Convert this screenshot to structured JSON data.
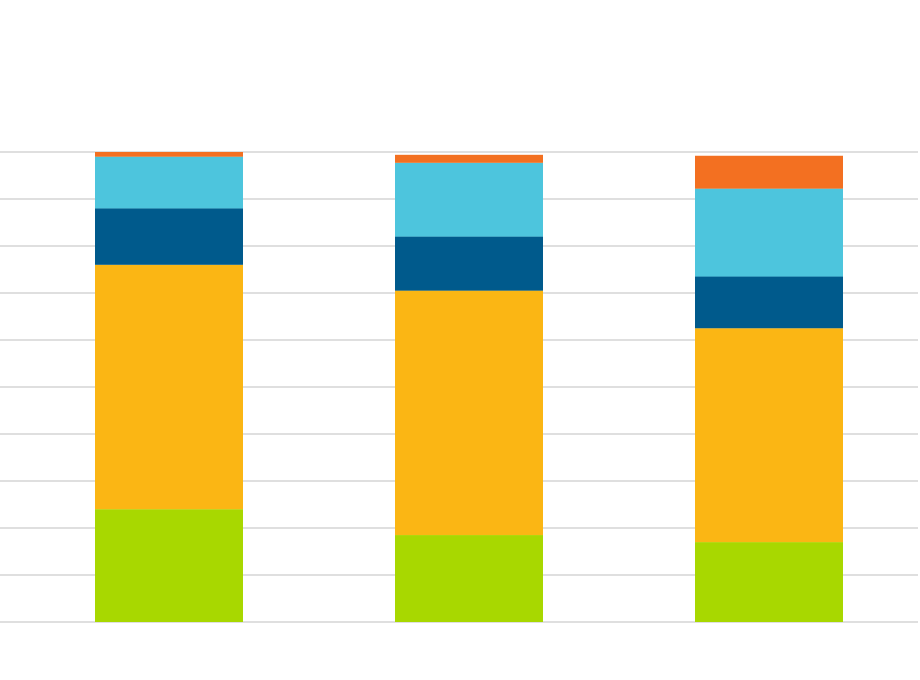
{
  "chart_data": {
    "type": "stacked_bar",
    "categories": [
      null,
      null,
      null
    ],
    "series": [
      {
        "color": "#a8d800",
        "values": [
          24,
          18.5,
          17
        ]
      },
      {
        "color": "#fbb614",
        "values": [
          52,
          52,
          45.5
        ]
      },
      {
        "color": "#005a8c",
        "values": [
          12,
          11.5,
          11
        ]
      },
      {
        "color": "#4dc5dd",
        "values": [
          11,
          15.7,
          18.7
        ]
      },
      {
        "color": "#f37021",
        "values": [
          1,
          1.7,
          7
        ]
      }
    ],
    "ylim": [
      0,
      100
    ],
    "yticks": [
      0,
      10,
      20,
      30,
      40,
      50,
      60,
      70,
      80,
      90,
      100
    ],
    "grid": true
  }
}
